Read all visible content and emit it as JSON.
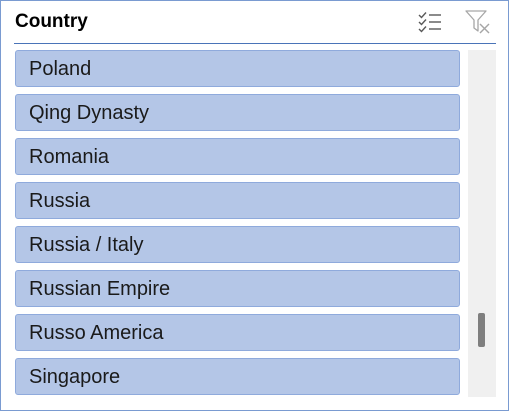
{
  "slicer": {
    "title": "Country",
    "icons": {
      "multi_select": "multi-select-icon",
      "clear_filter": "clear-filter-icon"
    },
    "items": [
      {
        "label": "Poland",
        "selected": true
      },
      {
        "label": "Qing Dynasty",
        "selected": true
      },
      {
        "label": "Romania",
        "selected": true
      },
      {
        "label": "Russia",
        "selected": true
      },
      {
        "label": "Russia / Italy",
        "selected": true
      },
      {
        "label": "Russian Empire",
        "selected": true
      },
      {
        "label": "Russo America",
        "selected": true
      },
      {
        "label": "Singapore",
        "selected": true
      }
    ],
    "scroll_position": 0.85
  },
  "colors": {
    "item_fill": "#b4c6e7",
    "item_border": "#8faadc",
    "header_rule": "#4a74b8",
    "frame": "#7a9bd1"
  }
}
